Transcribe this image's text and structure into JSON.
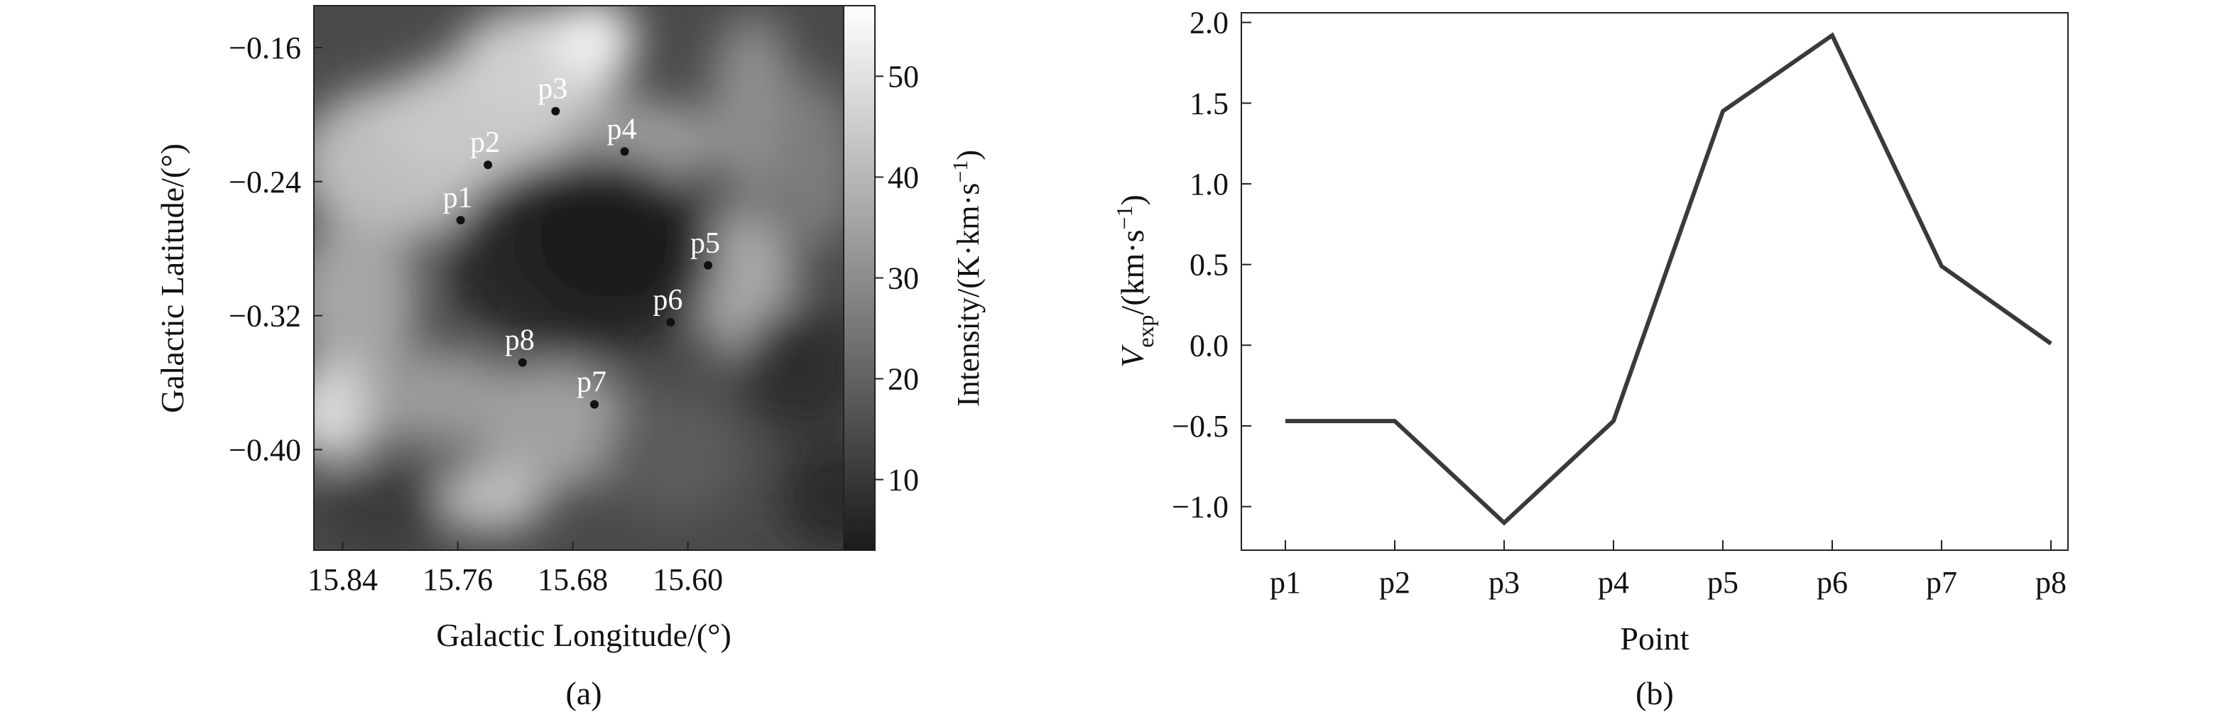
{
  "chart_data": [
    {
      "type": "heatmap",
      "panel_label": "(a)",
      "xlabel": "Galactic Longitude/(°)",
      "ylabel": "Galactic Latitude/(°)",
      "x_ticks": [
        "15.84",
        "15.76",
        "15.68",
        "15.60"
      ],
      "y_ticks": [
        "−0.16",
        "−0.24",
        "−0.32",
        "−0.40"
      ],
      "x_tick_values": [
        15.84,
        15.76,
        15.68,
        15.6
      ],
      "y_tick_values": [
        -0.16,
        -0.24,
        -0.32,
        -0.4
      ],
      "xlim": [
        15.86,
        15.47
      ],
      "ylim": [
        -0.46,
        -0.135
      ],
      "colorbar": {
        "label": "Intensity/(K·km·s",
        "label_sup": "−1",
        "label_close": ")",
        "ticks": [
          "10",
          "20",
          "30",
          "40",
          "50"
        ],
        "tick_values": [
          10,
          20,
          30,
          40,
          50
        ],
        "range": [
          3,
          57
        ],
        "colors": [
          "#1a1a1a",
          "#ffffff"
        ]
      },
      "points": [
        {
          "name": "p1",
          "l": 15.758,
          "b": -0.263
        },
        {
          "name": "p2",
          "l": 15.739,
          "b": -0.23
        },
        {
          "name": "p3",
          "l": 15.692,
          "b": -0.198
        },
        {
          "name": "p4",
          "l": 15.644,
          "b": -0.222
        },
        {
          "name": "p5",
          "l": 15.586,
          "b": -0.29
        },
        {
          "name": "p6",
          "l": 15.612,
          "b": -0.324
        },
        {
          "name": "p7",
          "l": 15.665,
          "b": -0.373
        },
        {
          "name": "p8",
          "l": 15.715,
          "b": -0.348
        }
      ]
    },
    {
      "type": "line",
      "panel_label": "(b)",
      "xlabel": "Point",
      "ylabel_main": "V",
      "ylabel_sub": "exp",
      "ylabel_rest": "/(km·s",
      "ylabel_sup": "−1",
      "ylabel_close": ")",
      "categories": [
        "p1",
        "p2",
        "p3",
        "p4",
        "p5",
        "p6",
        "p7",
        "p8"
      ],
      "values": [
        -0.47,
        -0.47,
        -1.1,
        -0.47,
        1.45,
        1.92,
        0.49,
        0.01
      ],
      "y_ticks": [
        "−1.0",
        "−0.5",
        "0.0",
        "0.5",
        "1.0",
        "1.5",
        "2.0"
      ],
      "y_tick_values": [
        -1.0,
        -0.5,
        0.0,
        0.5,
        1.0,
        1.5,
        2.0
      ],
      "ylim": [
        -1.27,
        2.06
      ],
      "grid": false,
      "line_color": "#3a3a3a"
    }
  ]
}
